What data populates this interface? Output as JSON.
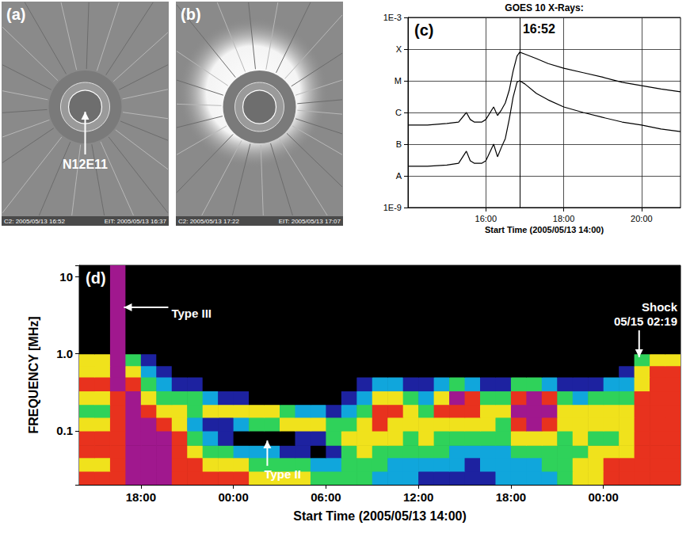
{
  "images": [
    {
      "label": "(a)",
      "annotation": "N12E11",
      "captions": [
        "C2: 2005/05/13 16:52",
        "EIT: 2005/05/13 16:37"
      ]
    },
    {
      "label": "(b)",
      "captions": [
        "C2: 2005/05/13 17:22",
        "EIT: 2005/05/13 17:07"
      ]
    }
  ],
  "chart_data": [
    {
      "type": "line",
      "label": "(c)",
      "title": "GOES 10 X-Rays:",
      "x_label": "Start Time (2005/05/13 14:00)",
      "xlim": [
        14,
        21
      ],
      "xticks": [
        {
          "value": 16,
          "label": "16:00"
        },
        {
          "value": 18,
          "label": "18:00"
        },
        {
          "value": 20,
          "label": "20:00"
        }
      ],
      "ylim": [
        1e-09,
        0.001
      ],
      "yticks": [
        {
          "value": 1e-09,
          "label": "1E-9"
        },
        {
          "value": 1e-08,
          "label": "A"
        },
        {
          "value": 1e-07,
          "label": "B"
        },
        {
          "value": 1e-06,
          "label": "C"
        },
        {
          "value": 1e-05,
          "label": "M"
        },
        {
          "value": 0.0001,
          "label": "X"
        },
        {
          "value": 0.001,
          "label": "1E-3"
        }
      ],
      "log": "y",
      "grid": true,
      "x": [
        14.0,
        14.5,
        15.0,
        15.3,
        15.5,
        15.6,
        15.7,
        15.9,
        16.0,
        16.2,
        16.3,
        16.4,
        16.5,
        16.6,
        16.7,
        16.8,
        16.87,
        17.0,
        17.3,
        17.6,
        18.0,
        18.5,
        19.0,
        19.5,
        20.0,
        20.5,
        21.0
      ],
      "series": [
        {
          "color": "#000000",
          "values": [
            4e-07,
            4e-07,
            4.5e-07,
            5e-07,
            1e-06,
            6e-07,
            5e-07,
            5e-07,
            6e-07,
            1.5e-06,
            8e-07,
            1.2e-06,
            2e-06,
            5e-06,
            2e-05,
            6e-05,
            8e-05,
            7e-05,
            5e-05,
            3.5e-05,
            2.5e-05,
            1.8e-05,
            1.3e-05,
            9e-06,
            7e-06,
            5.5e-06,
            4.5e-06
          ]
        },
        {
          "color": "#000000",
          "values": [
            2e-08,
            2e-08,
            2.2e-08,
            2.5e-08,
            6e-08,
            3e-08,
            2.5e-08,
            2.5e-08,
            3e-08,
            1e-07,
            4e-08,
            8e-08,
            1.5e-07,
            6e-07,
            3e-06,
            9e-06,
            1e-05,
            8e-06,
            4e-06,
            2.5e-06,
            1.5e-06,
            1e-06,
            7e-07,
            5e-07,
            4e-07,
            3e-07,
            2.5e-07
          ]
        }
      ],
      "annotations": [
        {
          "text": "16:52",
          "x": 16.8667
        }
      ]
    },
    {
      "type": "heatmap",
      "label": "(d)",
      "x_label": "Start Time (2005/05/13 14:00)",
      "y_label": "FREQUENCY [MHz]",
      "xlim": [
        14,
        53
      ],
      "xticks": [
        {
          "value": 18,
          "label": "18:00"
        },
        {
          "value": 24,
          "label": "00:00"
        },
        {
          "value": 30,
          "label": "06:00"
        },
        {
          "value": 36,
          "label": "12:00"
        },
        {
          "value": 42,
          "label": "18:00"
        },
        {
          "value": 48,
          "label": "00:00"
        }
      ],
      "ylim": [
        0.02,
        14
      ],
      "yticks": [
        0.1,
        {
          "value": 1,
          "label": "1.0"
        },
        10
      ],
      "log": "y",
      "grid": false,
      "time_edges": [
        14,
        15,
        16,
        17,
        18,
        19,
        20,
        21,
        22,
        23,
        24,
        25,
        26,
        27,
        28,
        29,
        30,
        31,
        32,
        33,
        34,
        35,
        36,
        37,
        38,
        39,
        40,
        41,
        42,
        43,
        44,
        45,
        46,
        47,
        48,
        49,
        50,
        51,
        52,
        53
      ],
      "freq_edges": [
        0.02,
        0.03,
        0.045,
        0.065,
        0.1,
        0.15,
        0.22,
        0.33,
        0.5,
        0.7,
        1.0,
        14
      ],
      "intensity_range": [
        0,
        6
      ],
      "intensity": [
        [
          5,
          5,
          5,
          6,
          6,
          6,
          5,
          5,
          5,
          5,
          5,
          4,
          4,
          4,
          4,
          3,
          3,
          3,
          3,
          2,
          2,
          2,
          1,
          1,
          1,
          1,
          1,
          2,
          2,
          2,
          2,
          3,
          4,
          4,
          5,
          5,
          5,
          5,
          5
        ],
        [
          4,
          4,
          5,
          6,
          6,
          6,
          5,
          5,
          4,
          4,
          4,
          3,
          3,
          3,
          3,
          2,
          2,
          3,
          3,
          3,
          2,
          2,
          2,
          2,
          2,
          1,
          2,
          2,
          2,
          2,
          3,
          3,
          4,
          4,
          5,
          5,
          5,
          5,
          5
        ],
        [
          5,
          5,
          5,
          6,
          6,
          6,
          5,
          4,
          3,
          3,
          2,
          2,
          2,
          1,
          1,
          0,
          1,
          3,
          4,
          3,
          3,
          3,
          3,
          3,
          2,
          2,
          2,
          2,
          3,
          3,
          3,
          3,
          3,
          4,
          4,
          4,
          5,
          5,
          5
        ],
        [
          5,
          5,
          5,
          6,
          6,
          6,
          5,
          3,
          2,
          1,
          0,
          0,
          0,
          0,
          1,
          1,
          3,
          4,
          4,
          4,
          4,
          3,
          4,
          3,
          3,
          3,
          3,
          3,
          4,
          4,
          4,
          3,
          4,
          3,
          3,
          4,
          5,
          5,
          5
        ],
        [
          4,
          4,
          5,
          6,
          6,
          5,
          4,
          2,
          1,
          1,
          2,
          3,
          3,
          4,
          4,
          4,
          3,
          3,
          4,
          5,
          4,
          4,
          4,
          4,
          4,
          4,
          4,
          3,
          5,
          6,
          5,
          4,
          4,
          4,
          4,
          4,
          5,
          5,
          5
        ],
        [
          3,
          3,
          5,
          6,
          5,
          4,
          4,
          3,
          4,
          4,
          4,
          4,
          4,
          3,
          2,
          2,
          1,
          2,
          3,
          5,
          5,
          4,
          3,
          5,
          5,
          5,
          4,
          4,
          6,
          6,
          6,
          4,
          4,
          4,
          4,
          4,
          5,
          5,
          5
        ],
        [
          4,
          4,
          5,
          6,
          4,
          3,
          3,
          3,
          2,
          1,
          1,
          0,
          0,
          0,
          0,
          0,
          0,
          1,
          2,
          4,
          4,
          3,
          2,
          4,
          6,
          5,
          3,
          3,
          5,
          6,
          5,
          3,
          2,
          3,
          3,
          3,
          5,
          5,
          5
        ],
        [
          5,
          5,
          6,
          5,
          3,
          2,
          1,
          1,
          0,
          0,
          0,
          0,
          0,
          0,
          0,
          0,
          0,
          0,
          1,
          2,
          2,
          1,
          1,
          2,
          3,
          2,
          1,
          1,
          3,
          3,
          2,
          1,
          1,
          1,
          2,
          2,
          4,
          5,
          5
        ],
        [
          4,
          4,
          6,
          4,
          2,
          1,
          0,
          0,
          0,
          0,
          0,
          0,
          0,
          0,
          0,
          0,
          0,
          0,
          0,
          0,
          0,
          0,
          0,
          0,
          0,
          0,
          0,
          0,
          0,
          0,
          0,
          0,
          0,
          0,
          0,
          1,
          4,
          5,
          5
        ],
        [
          4,
          4,
          6,
          3,
          1,
          0,
          0,
          0,
          0,
          0,
          0,
          0,
          0,
          0,
          0,
          0,
          0,
          0,
          0,
          0,
          0,
          0,
          0,
          0,
          0,
          0,
          0,
          0,
          0,
          0,
          0,
          0,
          0,
          0,
          0,
          0,
          3,
          4,
          4
        ],
        [
          0,
          0,
          6,
          0,
          0,
          0,
          0,
          0,
          0,
          0,
          0,
          0,
          0,
          0,
          0,
          0,
          0,
          0,
          0,
          0,
          0,
          0,
          0,
          0,
          0,
          0,
          0,
          0,
          0,
          0,
          0,
          0,
          0,
          0,
          0,
          0,
          0,
          0,
          0
        ]
      ],
      "annotations": [
        {
          "text": "Type III",
          "x": 16.9,
          "y": 4
        },
        {
          "text": "Type II",
          "x": 26.2,
          "y": 0.075
        },
        {
          "text": "Shock\n05/15 02:19",
          "x": 50.3167,
          "y": 0.9
        }
      ]
    }
  ]
}
